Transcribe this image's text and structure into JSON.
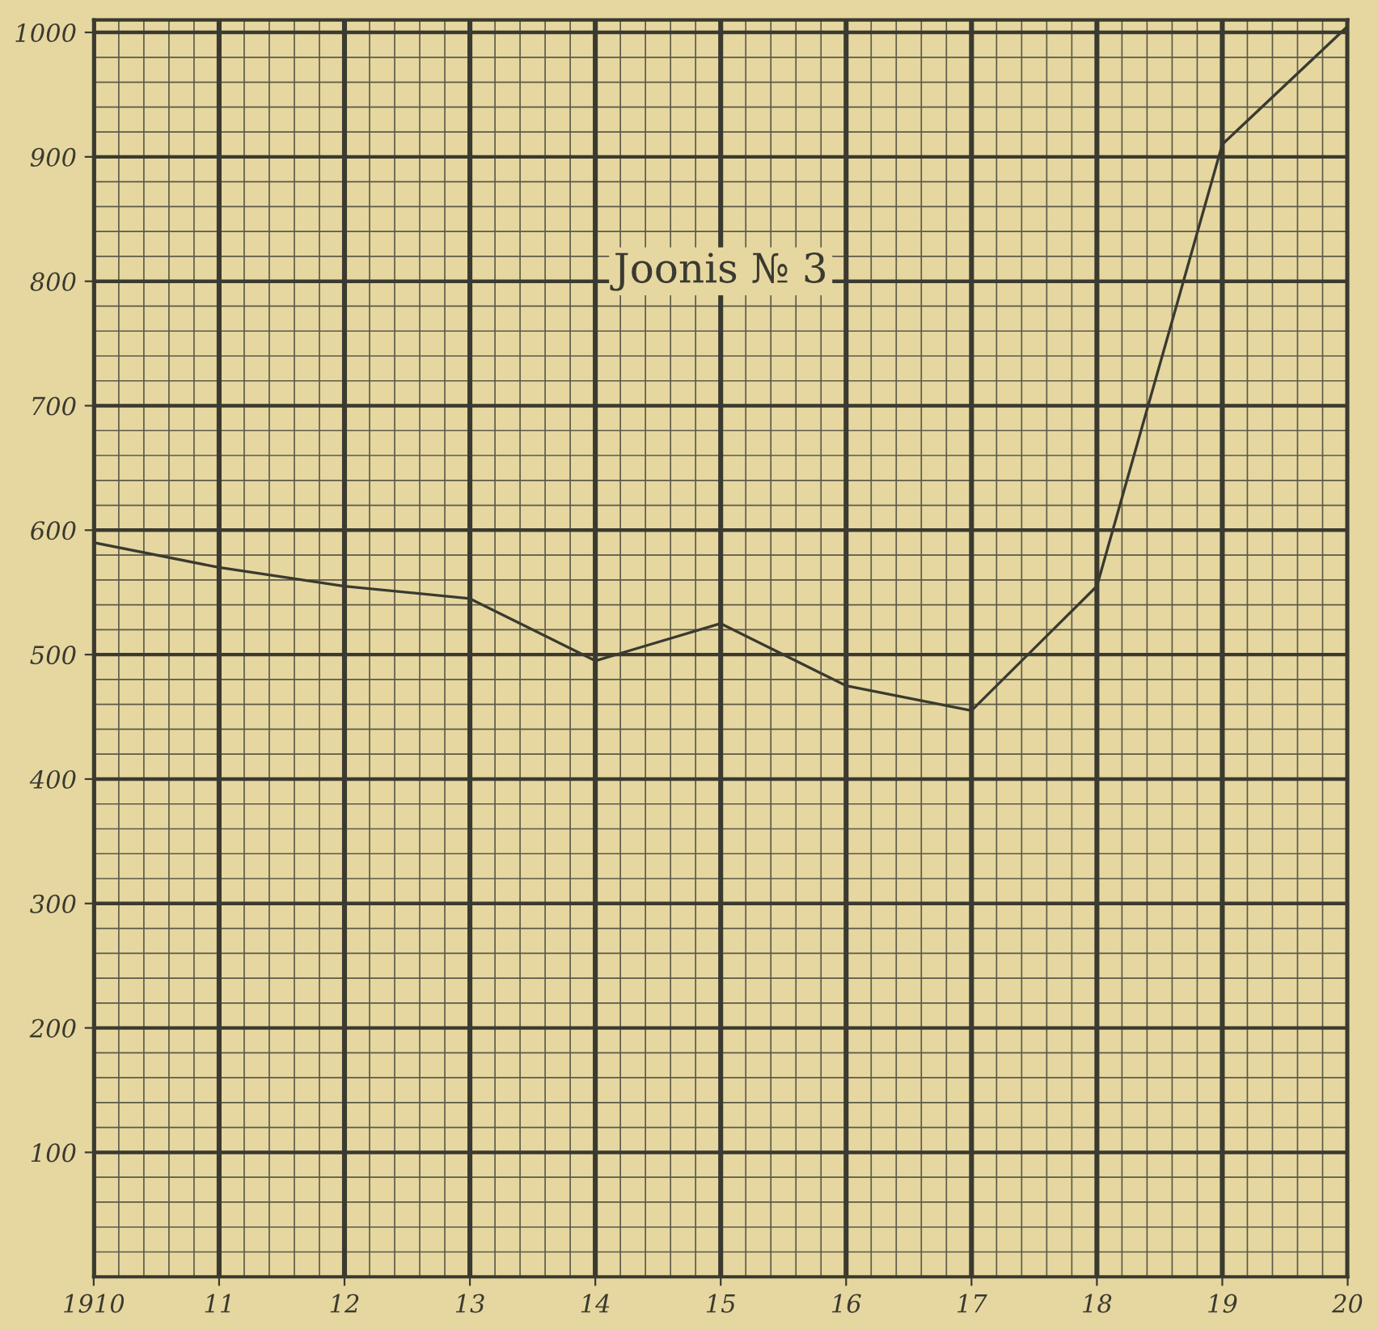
{
  "chart_data": {
    "type": "line",
    "title": "Joonis № 3",
    "x": [
      1910,
      1911,
      1912,
      1913,
      1914,
      1915,
      1916,
      1917,
      1918,
      1919,
      1920
    ],
    "series": [
      {
        "color": "#3a3a30",
        "values": [
          590,
          570,
          555,
          545,
          495,
          525,
          475,
          455,
          555,
          910,
          1005
        ]
      }
    ],
    "xlim": [
      1910,
      1920
    ],
    "ylim": [
      0,
      1010
    ],
    "xticks": [
      1910,
      {
        "value": 1911,
        "label": "11"
      },
      {
        "value": 1912,
        "label": "12"
      },
      {
        "value": 1913,
        "label": "13"
      },
      {
        "value": 1914,
        "label": "14"
      },
      {
        "value": 1915,
        "label": "15"
      },
      {
        "value": 1916,
        "label": "16"
      },
      {
        "value": 1917,
        "label": "17"
      },
      {
        "value": 1918,
        "label": "18"
      },
      {
        "value": 1919,
        "label": "19"
      },
      {
        "value": 1920,
        "label": "20"
      }
    ],
    "yticks": [
      100,
      200,
      300,
      400,
      500,
      600,
      700,
      800,
      900,
      1000
    ],
    "grid": true,
    "marker": "none",
    "line_style": "solid"
  }
}
